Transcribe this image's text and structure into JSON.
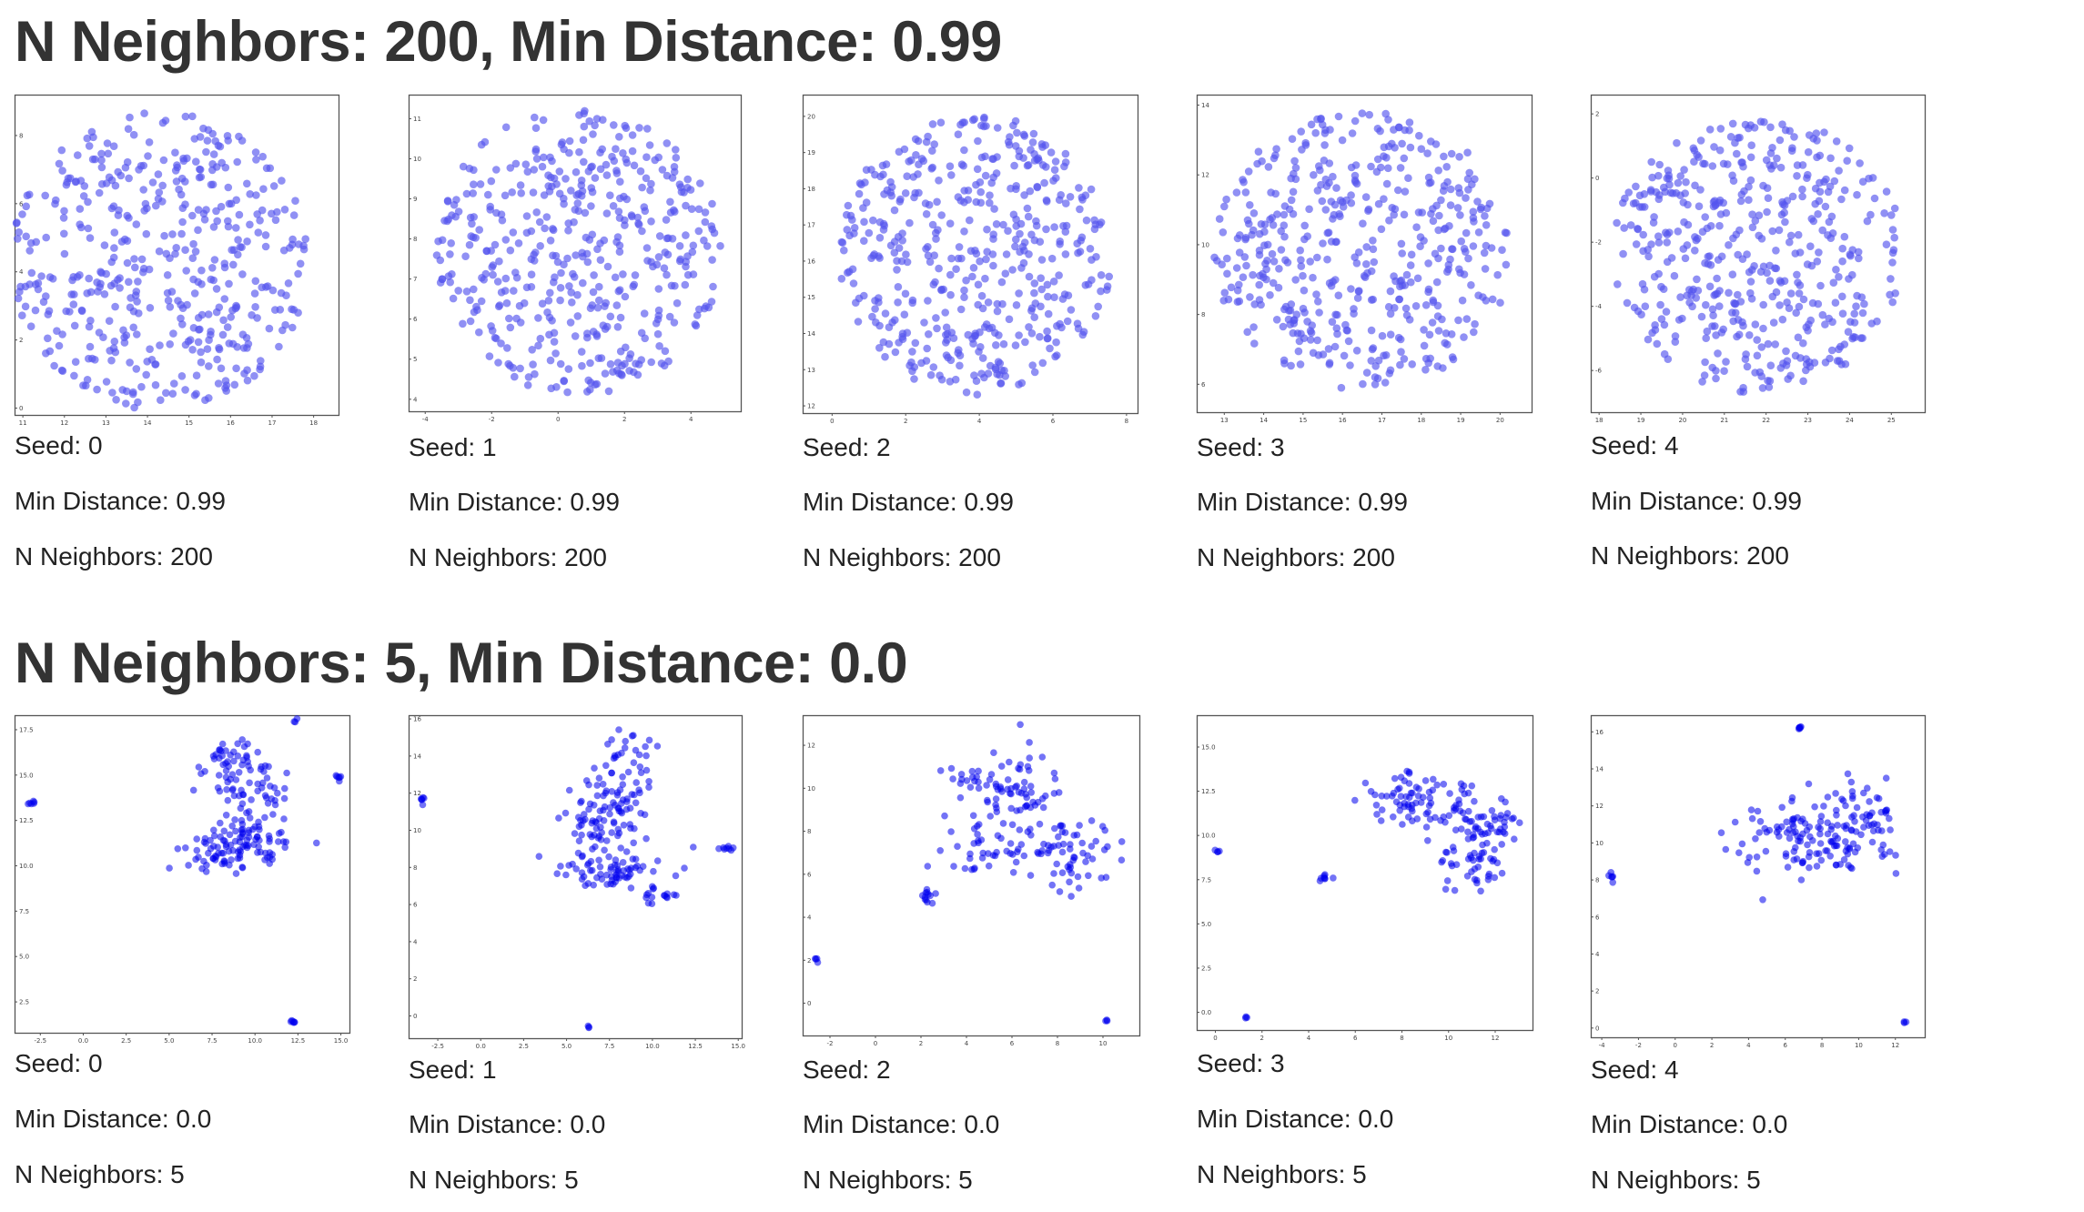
{
  "sections": [
    {
      "title": "N Neighbors: 200, Min Distance: 0.99",
      "cards": [
        {
          "seed": "Seed: 0",
          "min_distance": "Min Distance: 0.99",
          "n_neighbors": "N Neighbors: 200"
        },
        {
          "seed": "Seed: 1",
          "min_distance": "Min Distance: 0.99",
          "n_neighbors": "N Neighbors: 200"
        },
        {
          "seed": "Seed: 2",
          "min_distance": "Min Distance: 0.99",
          "n_neighbors": "N Neighbors: 200"
        },
        {
          "seed": "Seed: 3",
          "min_distance": "Min Distance: 0.99",
          "n_neighbors": "N Neighbors: 200"
        },
        {
          "seed": "Seed: 4",
          "min_distance": "Min Distance: 0.99",
          "n_neighbors": "N Neighbors: 200"
        }
      ]
    },
    {
      "title": "N Neighbors: 5, Min Distance: 0.0",
      "cards": [
        {
          "seed": "Seed: 0",
          "min_distance": "Min Distance: 0.0",
          "n_neighbors": "N Neighbors: 5"
        },
        {
          "seed": "Seed: 1",
          "min_distance": "Min Distance: 0.0",
          "n_neighbors": "N Neighbors: 5"
        },
        {
          "seed": "Seed: 2",
          "min_distance": "Min Distance: 0.0",
          "n_neighbors": "N Neighbors: 5"
        },
        {
          "seed": "Seed: 3",
          "min_distance": "Min Distance: 0.0",
          "n_neighbors": "N Neighbors: 5"
        },
        {
          "seed": "Seed: 4",
          "min_distance": "Min Distance: 0.0",
          "n_neighbors": "N Neighbors: 5"
        }
      ]
    }
  ],
  "colors": {
    "diffuse_points": "#5555ee",
    "clustered_points": "#0000ee",
    "frame": "#555555",
    "text": "#333333"
  },
  "chart_data": [
    {
      "type": "scatter",
      "series": [
        {
          "shape": "disc",
          "cx": 14.3,
          "cy": 4.3,
          "rx": 3.6,
          "ry": 4.4,
          "n": 460
        }
      ],
      "xticks": [
        "11",
        "12",
        "13",
        "14",
        "15",
        "16",
        "17",
        "18"
      ],
      "yticks": [
        "0",
        "2",
        "4",
        "6",
        "8"
      ],
      "xlim": [
        10.8,
        18.6
      ],
      "ylim": [
        -0.2,
        9.2
      ]
    },
    {
      "type": "scatter",
      "series": [
        {
          "shape": "disc",
          "cx": 0.6,
          "cy": 7.7,
          "rx": 4.3,
          "ry": 3.6,
          "n": 460
        }
      ],
      "xticks": [
        "-4",
        "-2",
        "0",
        "2",
        "4"
      ],
      "yticks": [
        "4",
        "5",
        "6",
        "7",
        "8",
        "9",
        "10",
        "11"
      ],
      "xlim": [
        -4.5,
        5.5
      ],
      "ylim": [
        3.7,
        11.6
      ]
    },
    {
      "type": "scatter",
      "series": [
        {
          "shape": "disc",
          "cx": 3.9,
          "cy": 16.2,
          "rx": 3.7,
          "ry": 3.9,
          "n": 460
        }
      ],
      "xticks": [
        "0",
        "2",
        "4",
        "6",
        "8"
      ],
      "yticks": [
        "12",
        "13",
        "14",
        "15",
        "16",
        "17",
        "18",
        "19",
        "20"
      ],
      "xlim": [
        -0.8,
        8.3
      ],
      "ylim": [
        11.8,
        20.6
      ]
    },
    {
      "type": "scatter",
      "series": [
        {
          "shape": "disc",
          "cx": 16.5,
          "cy": 9.8,
          "rx": 3.8,
          "ry": 4.0,
          "n": 460
        }
      ],
      "xticks": [
        "13",
        "14",
        "15",
        "16",
        "17",
        "18",
        "19",
        "20"
      ],
      "yticks": [
        "6",
        "8",
        "10",
        "12",
        "14"
      ],
      "xlim": [
        12.3,
        20.8
      ],
      "ylim": [
        5.2,
        14.3
      ]
    },
    {
      "type": "scatter",
      "series": [
        {
          "shape": "disc",
          "cx": 21.8,
          "cy": -2.4,
          "rx": 3.5,
          "ry": 4.3,
          "n": 460
        }
      ],
      "xticks": [
        "18",
        "19",
        "20",
        "21",
        "22",
        "23",
        "24",
        "25"
      ],
      "yticks": [
        "-6",
        "-4",
        "-2",
        "0",
        "2"
      ],
      "xlim": [
        17.8,
        25.8
      ],
      "ylim": [
        -7.3,
        2.6
      ]
    },
    {
      "type": "scatter",
      "series": [
        {
          "shape": "clusters",
          "clusters": [
            {
              "x": 8.5,
              "y": 15.5,
              "sx": 0.9,
              "sy": 1.0,
              "n": 50
            },
            {
              "x": 9.6,
              "y": 11.2,
              "sx": 1.4,
              "sy": 0.6,
              "n": 80
            },
            {
              "x": 10.3,
              "y": 13.8,
              "sx": 0.9,
              "sy": 1.1,
              "n": 40
            },
            {
              "x": 7.6,
              "y": 10.5,
              "sx": 0.8,
              "sy": 0.5,
              "n": 25
            },
            {
              "x": -3.0,
              "y": 13.5,
              "sx": 0.1,
              "sy": 0.1,
              "n": 6
            },
            {
              "x": 12.2,
              "y": 1.4,
              "sx": 0.1,
              "sy": 0.05,
              "n": 6
            },
            {
              "x": 12.3,
              "y": 18.0,
              "sx": 0.05,
              "sy": 0.05,
              "n": 3
            },
            {
              "x": 14.8,
              "y": 14.8,
              "sx": 0.1,
              "sy": 0.15,
              "n": 6
            }
          ]
        }
      ],
      "xticks": [
        "-2.5",
        "0.0",
        "2.5",
        "5.0",
        "7.5",
        "10.0",
        "12.5",
        "15.0"
      ],
      "yticks": [
        "2.5",
        "5.0",
        "7.5",
        "10.0",
        "12.5",
        "15.0",
        "17.5"
      ],
      "xlim": [
        -4.0,
        15.5
      ],
      "ylim": [
        0.8,
        18.3
      ]
    },
    {
      "type": "scatter",
      "series": [
        {
          "shape": "clusters",
          "clusters": [
            {
              "x": 8.3,
              "y": 12.3,
              "sx": 1.0,
              "sy": 1.4,
              "n": 80
            },
            {
              "x": 6.5,
              "y": 10.3,
              "sx": 0.8,
              "sy": 0.9,
              "n": 40
            },
            {
              "x": 8.0,
              "y": 7.8,
              "sx": 1.6,
              "sy": 0.6,
              "n": 70
            },
            {
              "x": 10.0,
              "y": 6.6,
              "sx": 0.6,
              "sy": 0.3,
              "n": 15
            },
            {
              "x": -3.4,
              "y": 11.6,
              "sx": 0.1,
              "sy": 0.1,
              "n": 6
            },
            {
              "x": 14.3,
              "y": 9.0,
              "sx": 0.2,
              "sy": 0.1,
              "n": 8
            },
            {
              "x": 6.3,
              "y": -0.6,
              "sx": 0.05,
              "sy": 0.05,
              "n": 3
            }
          ]
        }
      ],
      "xticks": [
        "-2.5",
        "0.0",
        "2.5",
        "5.0",
        "7.5",
        "10.0",
        "12.5",
        "15.0"
      ],
      "yticks": [
        "0",
        "2",
        "4",
        "6",
        "8",
        "10",
        "12",
        "14",
        "16"
      ],
      "xlim": [
        -4.2,
        15.2
      ],
      "ylim": [
        -1.2,
        16.2
      ]
    },
    {
      "type": "scatter",
      "series": [
        {
          "shape": "clusters",
          "clusters": [
            {
              "x": 6.0,
              "y": 10.0,
              "sx": 0.9,
              "sy": 1.1,
              "n": 60
            },
            {
              "x": 5.5,
              "y": 7.2,
              "sx": 1.3,
              "sy": 0.8,
              "n": 50
            },
            {
              "x": 8.8,
              "y": 7.0,
              "sx": 1.2,
              "sy": 0.8,
              "n": 60
            },
            {
              "x": 4.0,
              "y": 10.3,
              "sx": 0.4,
              "sy": 0.4,
              "n": 15
            },
            {
              "x": 2.3,
              "y": 5.0,
              "sx": 0.2,
              "sy": 0.2,
              "n": 12
            },
            {
              "x": -2.6,
              "y": 2.0,
              "sx": 0.05,
              "sy": 0.05,
              "n": 4
            },
            {
              "x": 10.2,
              "y": -0.9,
              "sx": 0.05,
              "sy": 0.05,
              "n": 3
            }
          ]
        }
      ],
      "xticks": [
        "-2",
        "0",
        "2",
        "4",
        "6",
        "8",
        "10"
      ],
      "yticks": [
        "0",
        "2",
        "4",
        "6",
        "8",
        "10",
        "12"
      ],
      "xlim": [
        -3.2,
        11.6
      ],
      "ylim": [
        -1.5,
        13.4
      ]
    },
    {
      "type": "scatter",
      "series": [
        {
          "shape": "clusters",
          "clusters": [
            {
              "x": 8.3,
              "y": 12.2,
              "sx": 0.8,
              "sy": 0.8,
              "n": 60
            },
            {
              "x": 10.8,
              "y": 11.0,
              "sx": 0.8,
              "sy": 0.8,
              "n": 40
            },
            {
              "x": 11.0,
              "y": 8.5,
              "sx": 0.7,
              "sy": 1.0,
              "n": 50
            },
            {
              "x": 12.3,
              "y": 10.5,
              "sx": 0.5,
              "sy": 0.6,
              "n": 20
            },
            {
              "x": 0.1,
              "y": 9.1,
              "sx": 0.05,
              "sy": 0.05,
              "n": 4
            },
            {
              "x": 4.7,
              "y": 7.6,
              "sx": 0.15,
              "sy": 0.1,
              "n": 8
            },
            {
              "x": 1.3,
              "y": -0.3,
              "sx": 0.05,
              "sy": 0.03,
              "n": 3
            }
          ]
        }
      ],
      "xticks": [
        "0",
        "2",
        "4",
        "6",
        "8",
        "10",
        "12"
      ],
      "yticks": [
        "0.0",
        "2.5",
        "5.0",
        "7.5",
        "10.0",
        "12.5",
        "15.0"
      ],
      "xlim": [
        -0.8,
        13.6
      ],
      "ylim": [
        -1.0,
        16.8
      ]
    },
    {
      "type": "scatter",
      "series": [
        {
          "shape": "clusters",
          "clusters": [
            {
              "x": 7.5,
              "y": 10.3,
              "sx": 2.0,
              "sy": 1.0,
              "n": 120
            },
            {
              "x": 10.0,
              "y": 11.5,
              "sx": 1.0,
              "sy": 1.2,
              "n": 50
            },
            {
              "x": 6.8,
              "y": 16.2,
              "sx": 0.05,
              "sy": 0.08,
              "n": 6
            },
            {
              "x": -3.5,
              "y": 8.1,
              "sx": 0.1,
              "sy": 0.1,
              "n": 6
            },
            {
              "x": 12.5,
              "y": 0.3,
              "sx": 0.05,
              "sy": 0.05,
              "n": 3
            }
          ]
        }
      ],
      "xticks": [
        "-4",
        "-2",
        "0",
        "2",
        "4",
        "6",
        "8",
        "10",
        "12"
      ],
      "yticks": [
        "0",
        "2",
        "4",
        "6",
        "8",
        "10",
        "12",
        "14",
        "16"
      ],
      "xlim": [
        -4.6,
        13.6
      ],
      "ylim": [
        -0.5,
        16.9
      ]
    }
  ]
}
